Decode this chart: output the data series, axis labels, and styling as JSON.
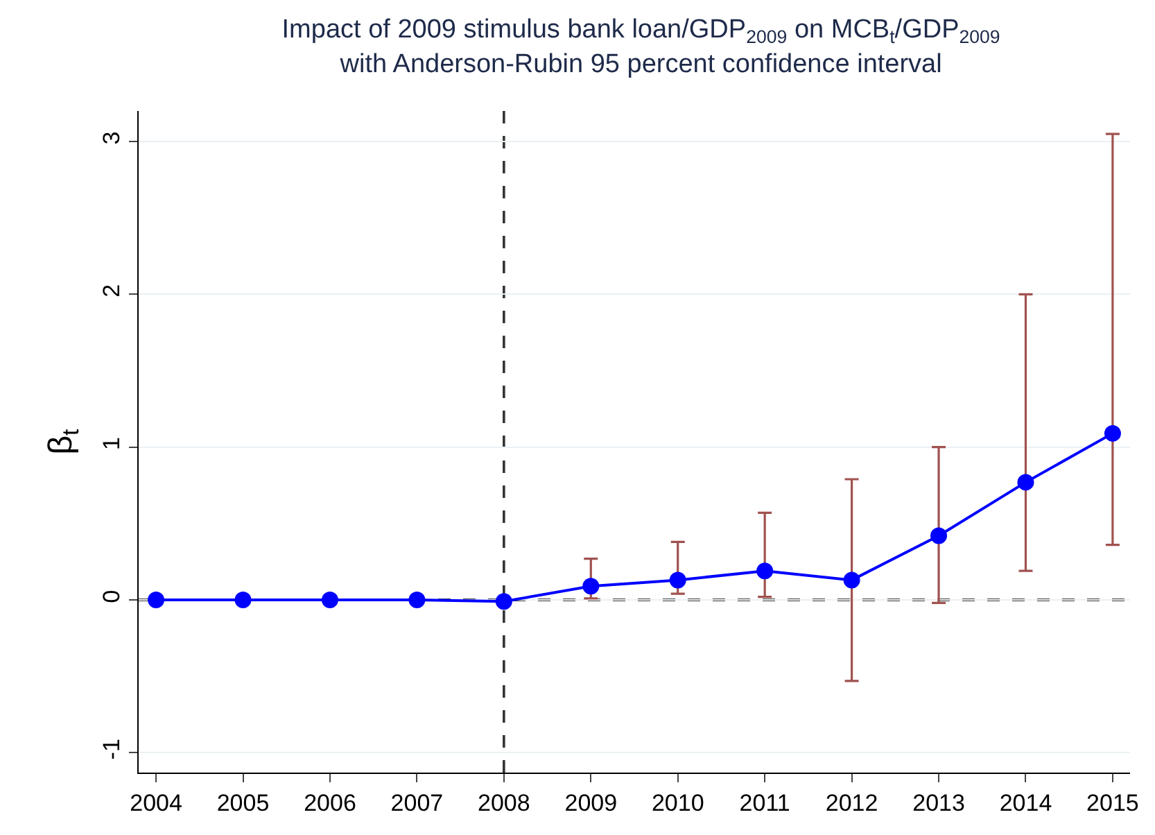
{
  "chart_data": {
    "type": "line",
    "title": "Impact of 2009 stimulus bank loan/GDP$_{2009}$ on MCB$_{t}$/GDP$_{2009}$\nwith Anderson-Rubin 95 percent confidence interval",
    "ylabel": "β$_{t}$",
    "x": [
      2004,
      2005,
      2006,
      2007,
      2008,
      2009,
      2010,
      2011,
      2012,
      2013,
      2014,
      2015
    ],
    "series": [
      {
        "color": "#0000ff",
        "values": [
          0,
          0,
          0,
          0,
          -0.01,
          0.09,
          0.13,
          0.19,
          0.13,
          0.42,
          0.77,
          1.09
        ],
        "errors": [
          null,
          null,
          null,
          null,
          null,
          [
            0.01,
            0.27
          ],
          [
            0.04,
            0.38
          ],
          [
            0.02,
            0.57
          ],
          [
            -0.53,
            0.79
          ],
          [
            -0.02,
            1.0
          ],
          [
            0.19,
            2.0
          ],
          [
            0.36,
            3.05
          ]
        ]
      }
    ],
    "xlim": [
      2003.8,
      2015.2
    ],
    "xticks": [
      2004,
      2005,
      2006,
      2007,
      2008,
      2009,
      2010,
      2011,
      2012,
      2013,
      2014,
      2015
    ],
    "ylim": [
      -1.13,
      3.2
    ],
    "yticks": [
      -1,
      0,
      1,
      2,
      3
    ],
    "ref_lines": [
      {
        "axis": "x",
        "value": 2008,
        "color": "#333333",
        "line_style": "dashed"
      },
      {
        "axis": "y",
        "value": 0,
        "color": "#000000",
        "line_style": "dashed"
      }
    ],
    "grid": "y",
    "marker": "circle",
    "line_style": "solid"
  }
}
